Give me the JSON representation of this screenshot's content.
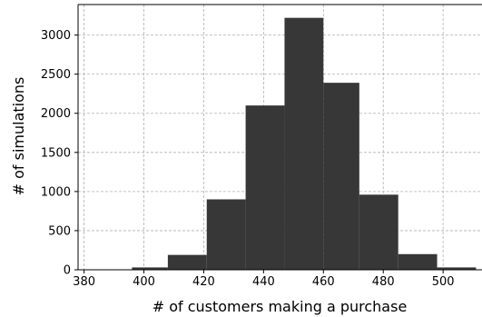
{
  "chart_data": {
    "type": "bar",
    "subtype": "histogram",
    "title": "",
    "xlabel": "# of customers making a purchase",
    "ylabel": "# of simulations",
    "bins": [
      {
        "x0": 383,
        "x1": 396,
        "count": 0
      },
      {
        "x0": 396,
        "x1": 408,
        "count": 30
      },
      {
        "x0": 408,
        "x1": 421,
        "count": 190
      },
      {
        "x0": 421,
        "x1": 434,
        "count": 900
      },
      {
        "x0": 434,
        "x1": 447,
        "count": 2100
      },
      {
        "x0": 447,
        "x1": 460,
        "count": 3220
      },
      {
        "x0": 460,
        "x1": 472,
        "count": 2390
      },
      {
        "x0": 472,
        "x1": 485,
        "count": 960
      },
      {
        "x0": 485,
        "x1": 498,
        "count": 200
      },
      {
        "x0": 498,
        "x1": 511,
        "count": 30
      }
    ],
    "xlim": [
      378,
      513
    ],
    "ylim": [
      0,
      3390
    ],
    "xticks": [
      380,
      400,
      420,
      440,
      460,
      480,
      500
    ],
    "yticks": [
      0,
      500,
      1000,
      1500,
      2000,
      2500,
      3000
    ],
    "bar_color": "#333333",
    "grid": true,
    "grid_color": "#b0b0b0"
  }
}
